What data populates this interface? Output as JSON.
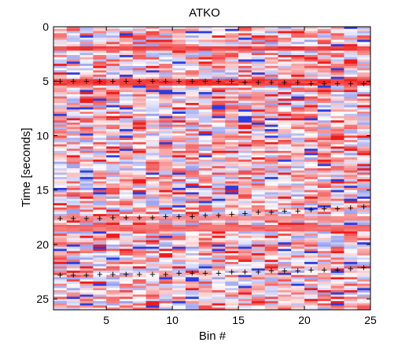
{
  "chart_data": {
    "type": "heatmap",
    "title": "ATKO",
    "xlabel": "Bin #",
    "ylabel": "Time [seconds]",
    "xlim": [
      1,
      25
    ],
    "ylim": [
      0,
      26
    ],
    "y_direction": "reversed",
    "xticks": [
      5,
      10,
      15,
      20,
      25
    ],
    "yticks": [
      0,
      5,
      10,
      15,
      20,
      25
    ],
    "grid": false,
    "colormap": {
      "negative": "#2233dd",
      "zero": "#ffffff",
      "positive": "#ee1111"
    },
    "columns": 24,
    "row_step_seconds": 0.2,
    "marker_symbol": "+",
    "marker_color": "#000000",
    "marker_series": [
      {
        "x": [
          1.5,
          2.5,
          3.5,
          4.5,
          5.5,
          6.5,
          7.5,
          8.5,
          9.5,
          10.5,
          11.5,
          12.5,
          13.5,
          14.5,
          15.5,
          16.5,
          17.5,
          18.5,
          19.5,
          20.5,
          21.5,
          22.5,
          23.5,
          24.5
        ],
        "y": [
          5.0,
          5.0,
          5.0,
          5.0,
          5.0,
          5.0,
          5.0,
          5.0,
          5.0,
          5.0,
          5.0,
          5.0,
          5.0,
          5.0,
          5.1,
          5.1,
          5.1,
          5.1,
          5.1,
          5.2,
          5.2,
          5.2,
          5.2,
          5.2
        ]
      },
      {
        "x": [
          1.5,
          2.5,
          3.5,
          4.5,
          5.5,
          6.5,
          7.5,
          8.5,
          9.5,
          10.5,
          11.5,
          12.5,
          13.5,
          14.5,
          15.5,
          16.5,
          17.5,
          18.5,
          19.5,
          20.5,
          21.5,
          22.5,
          23.5,
          24.5
        ],
        "y": [
          17.6,
          17.6,
          17.6,
          17.6,
          17.5,
          17.5,
          17.5,
          17.5,
          17.4,
          17.4,
          17.4,
          17.3,
          17.3,
          17.2,
          17.1,
          17.0,
          17.0,
          16.9,
          16.9,
          16.8,
          16.7,
          16.7,
          16.6,
          16.5
        ]
      },
      {
        "x": [
          1.5,
          2.5,
          3.5,
          4.5,
          5.5,
          6.5,
          7.5,
          8.5,
          9.5,
          10.5,
          11.5,
          12.5,
          13.5,
          14.5,
          15.5,
          16.5,
          17.5,
          18.5,
          19.5,
          20.5,
          21.5,
          22.5,
          23.5,
          24.5
        ],
        "y": [
          22.8,
          22.8,
          22.8,
          22.7,
          22.7,
          22.7,
          22.7,
          22.7,
          22.7,
          22.6,
          22.6,
          22.6,
          22.6,
          22.5,
          22.5,
          22.5,
          22.4,
          22.4,
          22.4,
          22.3,
          22.3,
          22.3,
          22.2,
          22.1
        ]
      }
    ],
    "bands": [
      {
        "y0": 1.8,
        "y1": 2.3,
        "strength": 0.9,
        "note": "red"
      },
      {
        "y0": 4.9,
        "y1": 5.4,
        "strength": 0.95,
        "note": "red"
      },
      {
        "y0": 17.4,
        "y1": 17.8,
        "strength": 0.55,
        "note": "red"
      },
      {
        "y0": 18.3,
        "y1": 18.7,
        "strength": 0.7,
        "note": "red"
      }
    ]
  }
}
